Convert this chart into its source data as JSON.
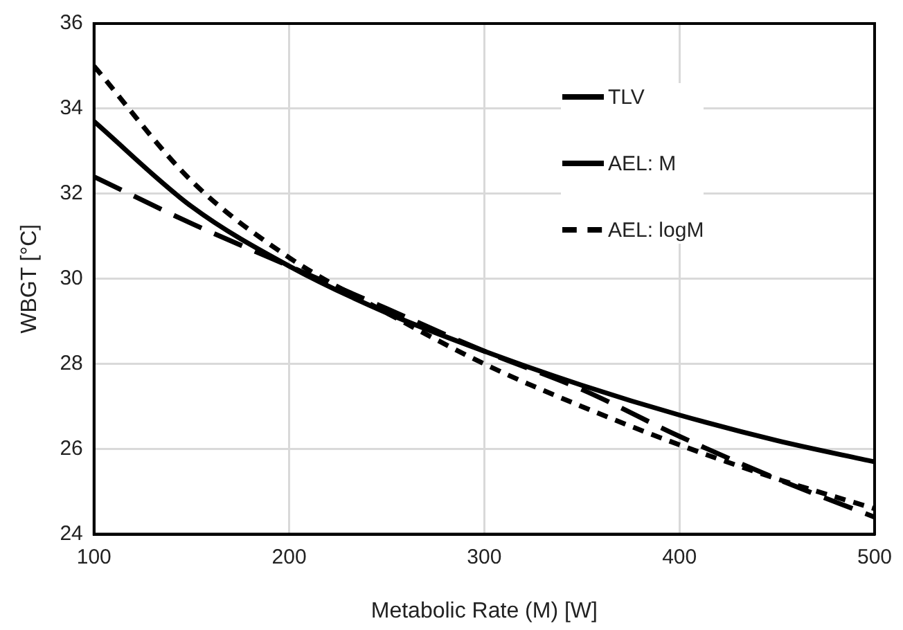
{
  "chart_data": {
    "type": "line",
    "xlabel": "Metabolic Rate (M) [W]",
    "ylabel": "WBGT [°C]",
    "x": [
      100,
      150,
      200,
      250,
      300,
      350,
      400,
      450,
      500
    ],
    "xlim": [
      100,
      500
    ],
    "xticks": [
      100,
      200,
      300,
      400,
      500
    ],
    "ylim": [
      24,
      36
    ],
    "yticks": [
      24,
      26,
      28,
      30,
      32,
      34,
      36
    ],
    "grid": true,
    "legend": "top right",
    "marker": "none",
    "series": [
      {
        "name": "TLV",
        "color": "#000000",
        "line_style": "solid",
        "values": [
          33.7,
          31.7,
          30.3,
          29.2,
          28.3,
          27.5,
          26.8,
          26.2,
          25.7
        ]
      },
      {
        "name": "AEL: M",
        "color": "#000000",
        "line_style": "dashed",
        "values": [
          32.4,
          31.3,
          30.3,
          29.3,
          28.3,
          27.4,
          26.3,
          25.3,
          24.4
        ]
      },
      {
        "name": "AEL: logM",
        "color": "#000000",
        "line_style": "dotted",
        "values": [
          35.0,
          32.3,
          30.5,
          29.2,
          28.0,
          27.0,
          26.1,
          25.3,
          24.6
        ]
      }
    ]
  }
}
